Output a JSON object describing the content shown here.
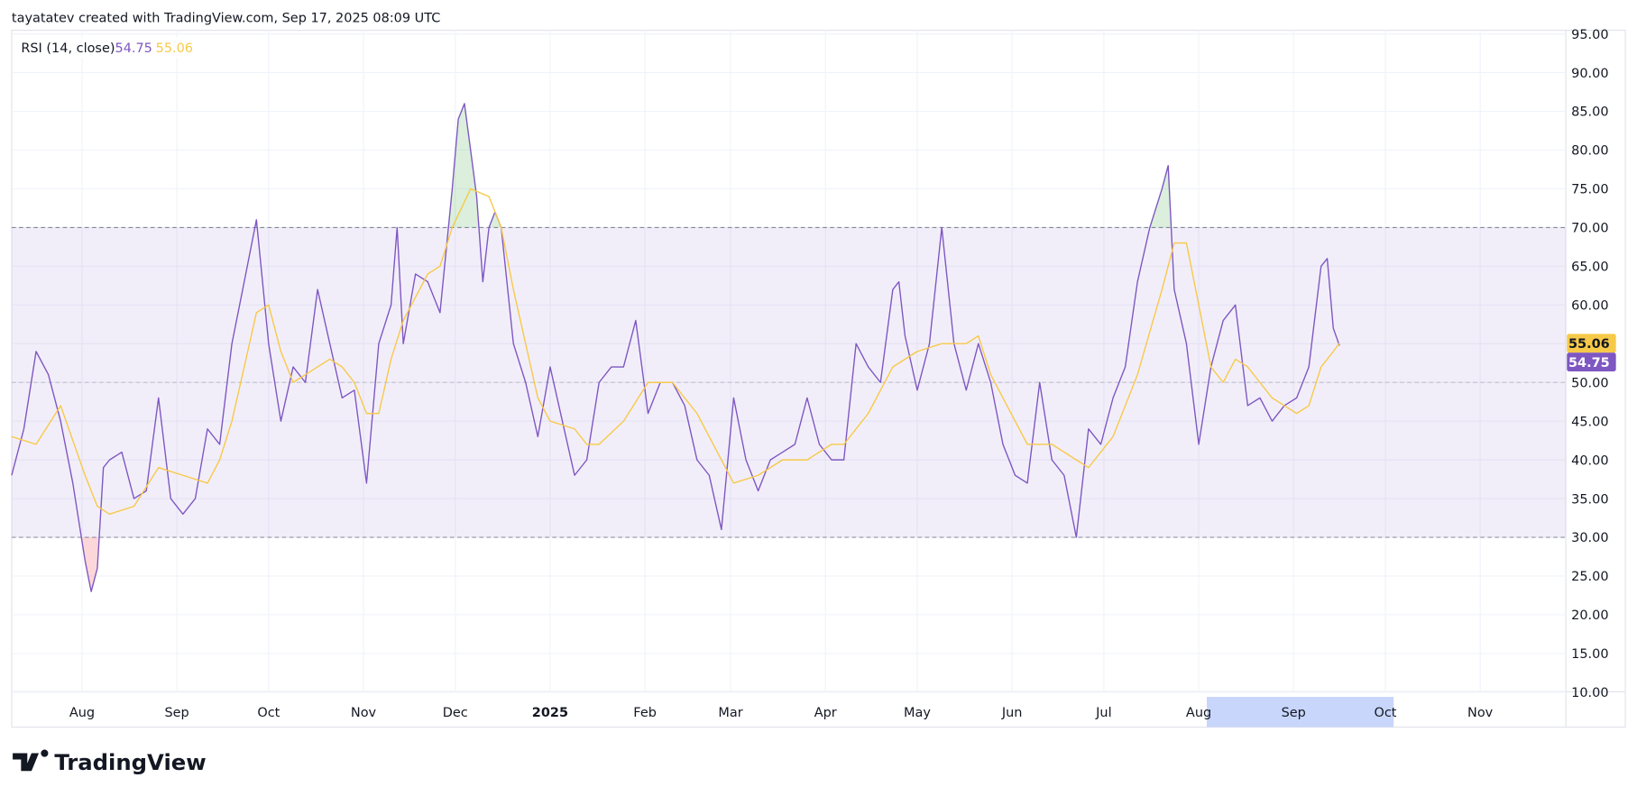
{
  "header": "tayatatev created with TradingView.com, Sep 17, 2025 08:09 UTC",
  "chart_data": {
    "type": "line",
    "title": "RSI (14, close)",
    "series": [
      {
        "color": "#7e57c2",
        "x": [
          0,
          4,
          8,
          12,
          16,
          20,
          24,
          26,
          28,
          30,
          32,
          36,
          40,
          44,
          48,
          52,
          56,
          60,
          64,
          68,
          72,
          76,
          80,
          84,
          88,
          92,
          96,
          100,
          104,
          108,
          112,
          116,
          120,
          124,
          126,
          128,
          132,
          136,
          140,
          144,
          146,
          148,
          150,
          152,
          154,
          156,
          158,
          160,
          164,
          168,
          172,
          176,
          180,
          184,
          188,
          192,
          196,
          200,
          204,
          208,
          212,
          216,
          220,
          224,
          228,
          232,
          236,
          240,
          244,
          248,
          252,
          256,
          260,
          264,
          268,
          272,
          276,
          280,
          284,
          288,
          290,
          292,
          296,
          300,
          304,
          308,
          312,
          316,
          320,
          324,
          328,
          332,
          336,
          340,
          344,
          348,
          352,
          356,
          360,
          364,
          368,
          372,
          376,
          378,
          380,
          384,
          388,
          392,
          396,
          400,
          404,
          408,
          412,
          416,
          420,
          424,
          428,
          430,
          432,
          434
        ],
        "values": [
          38,
          44,
          54,
          51,
          45,
          37,
          27,
          23,
          26,
          39,
          40,
          41,
          35,
          36,
          48,
          35,
          33,
          35,
          44,
          42,
          55,
          63,
          71,
          55,
          45,
          52,
          50,
          62,
          55,
          48,
          49,
          37,
          55,
          60,
          70,
          55,
          64,
          63,
          59,
          75,
          84,
          86,
          80,
          74,
          63,
          70,
          72,
          70,
          55,
          50,
          43,
          52,
          45,
          38,
          40,
          50,
          52,
          52,
          58,
          46,
          50,
          50,
          47,
          40,
          38,
          31,
          48,
          40,
          36,
          40,
          41,
          42,
          48,
          42,
          40,
          40,
          55,
          52,
          50,
          62,
          63,
          56,
          49,
          55,
          70,
          55,
          49,
          55,
          50,
          42,
          38,
          37,
          50,
          40,
          38,
          30,
          44,
          42,
          48,
          52,
          63,
          70,
          75,
          78,
          62,
          55,
          42,
          52,
          58,
          60,
          47,
          48,
          45,
          47,
          48,
          52,
          65,
          66,
          57,
          54.75
        ]
      },
      {
        "color": "#f7c948",
        "x": [
          0,
          8,
          16,
          24,
          28,
          32,
          40,
          48,
          56,
          64,
          68,
          72,
          76,
          80,
          84,
          88,
          92,
          96,
          104,
          108,
          112,
          116,
          120,
          124,
          128,
          136,
          140,
          144,
          150,
          156,
          160,
          164,
          168,
          172,
          176,
          184,
          188,
          192,
          200,
          208,
          216,
          220,
          224,
          232,
          236,
          244,
          252,
          260,
          268,
          272,
          280,
          288,
          296,
          304,
          312,
          316,
          320,
          328,
          332,
          340,
          348,
          352,
          360,
          368,
          376,
          380,
          384,
          388,
          392,
          396,
          400,
          404,
          408,
          412,
          416,
          420,
          424,
          428,
          432,
          434
        ],
        "values": [
          43,
          42,
          47,
          38,
          34,
          33,
          34,
          39,
          38,
          37,
          40,
          45,
          52,
          59,
          60,
          54,
          50,
          51,
          53,
          52,
          50,
          46,
          46,
          53,
          58,
          64,
          65,
          70,
          75,
          74,
          70,
          62,
          55,
          48,
          45,
          44,
          42,
          42,
          45,
          50,
          50,
          48,
          46,
          40,
          37,
          38,
          40,
          40,
          42,
          42,
          46,
          52,
          54,
          55,
          55,
          56,
          51,
          45,
          42,
          42,
          40,
          39,
          43,
          51,
          62,
          68,
          68,
          60,
          52,
          50,
          53,
          52,
          50,
          48,
          47,
          46,
          47,
          52,
          54,
          55.06
        ]
      }
    ],
    "upper_band": 70,
    "middle_band": 50,
    "lower_band": 30,
    "xlim": [
      0,
      508
    ],
    "xticks": [
      {
        "value": 23,
        "label": "Aug"
      },
      {
        "value": 54,
        "label": "Sep"
      },
      {
        "value": 84,
        "label": "Oct"
      },
      {
        "value": 115,
        "label": "Nov"
      },
      {
        "value": 145,
        "label": "Dec"
      },
      {
        "value": 176,
        "label": "2025"
      },
      {
        "value": 207,
        "label": "Feb"
      },
      {
        "value": 235,
        "label": "Mar"
      },
      {
        "value": 266,
        "label": "Apr"
      },
      {
        "value": 296,
        "label": "May"
      },
      {
        "value": 327,
        "label": "Jun"
      },
      {
        "value": 357,
        "label": "Jul"
      },
      {
        "value": 388,
        "label": "Aug"
      },
      {
        "value": 419,
        "label": "Sep"
      },
      {
        "value": 449,
        "label": "Oct"
      },
      {
        "value": 480,
        "label": "Nov"
      }
    ],
    "ylim": [
      10,
      95
    ],
    "yticks": [
      {
        "value": 95,
        "label": "95.00"
      },
      {
        "value": 90,
        "label": "90.00"
      },
      {
        "value": 85,
        "label": "85.00"
      },
      {
        "value": 80,
        "label": "80.00"
      },
      {
        "value": 75,
        "label": "75.00"
      },
      {
        "value": 70,
        "label": "70.00"
      },
      {
        "value": 65,
        "label": "65.00"
      },
      {
        "value": 60,
        "label": "60.00"
      },
      {
        "value": 55,
        "label": "55.00"
      },
      {
        "value": 50,
        "label": "50.00"
      },
      {
        "value": 45,
        "label": "45.00"
      },
      {
        "value": 40,
        "label": "40.00"
      },
      {
        "value": 35,
        "label": "35.00"
      },
      {
        "value": 30,
        "label": "30.00"
      },
      {
        "value": 25,
        "label": "25.00"
      },
      {
        "value": 20,
        "label": "20.00"
      },
      {
        "value": 15,
        "label": "15.00"
      },
      {
        "value": 10,
        "label": "10.00"
      }
    ],
    "grid": true,
    "band_color": "#7e57c2",
    "overbought_color": "#4caf50",
    "oversold_color": "#f23645"
  },
  "brand": "TradingView"
}
